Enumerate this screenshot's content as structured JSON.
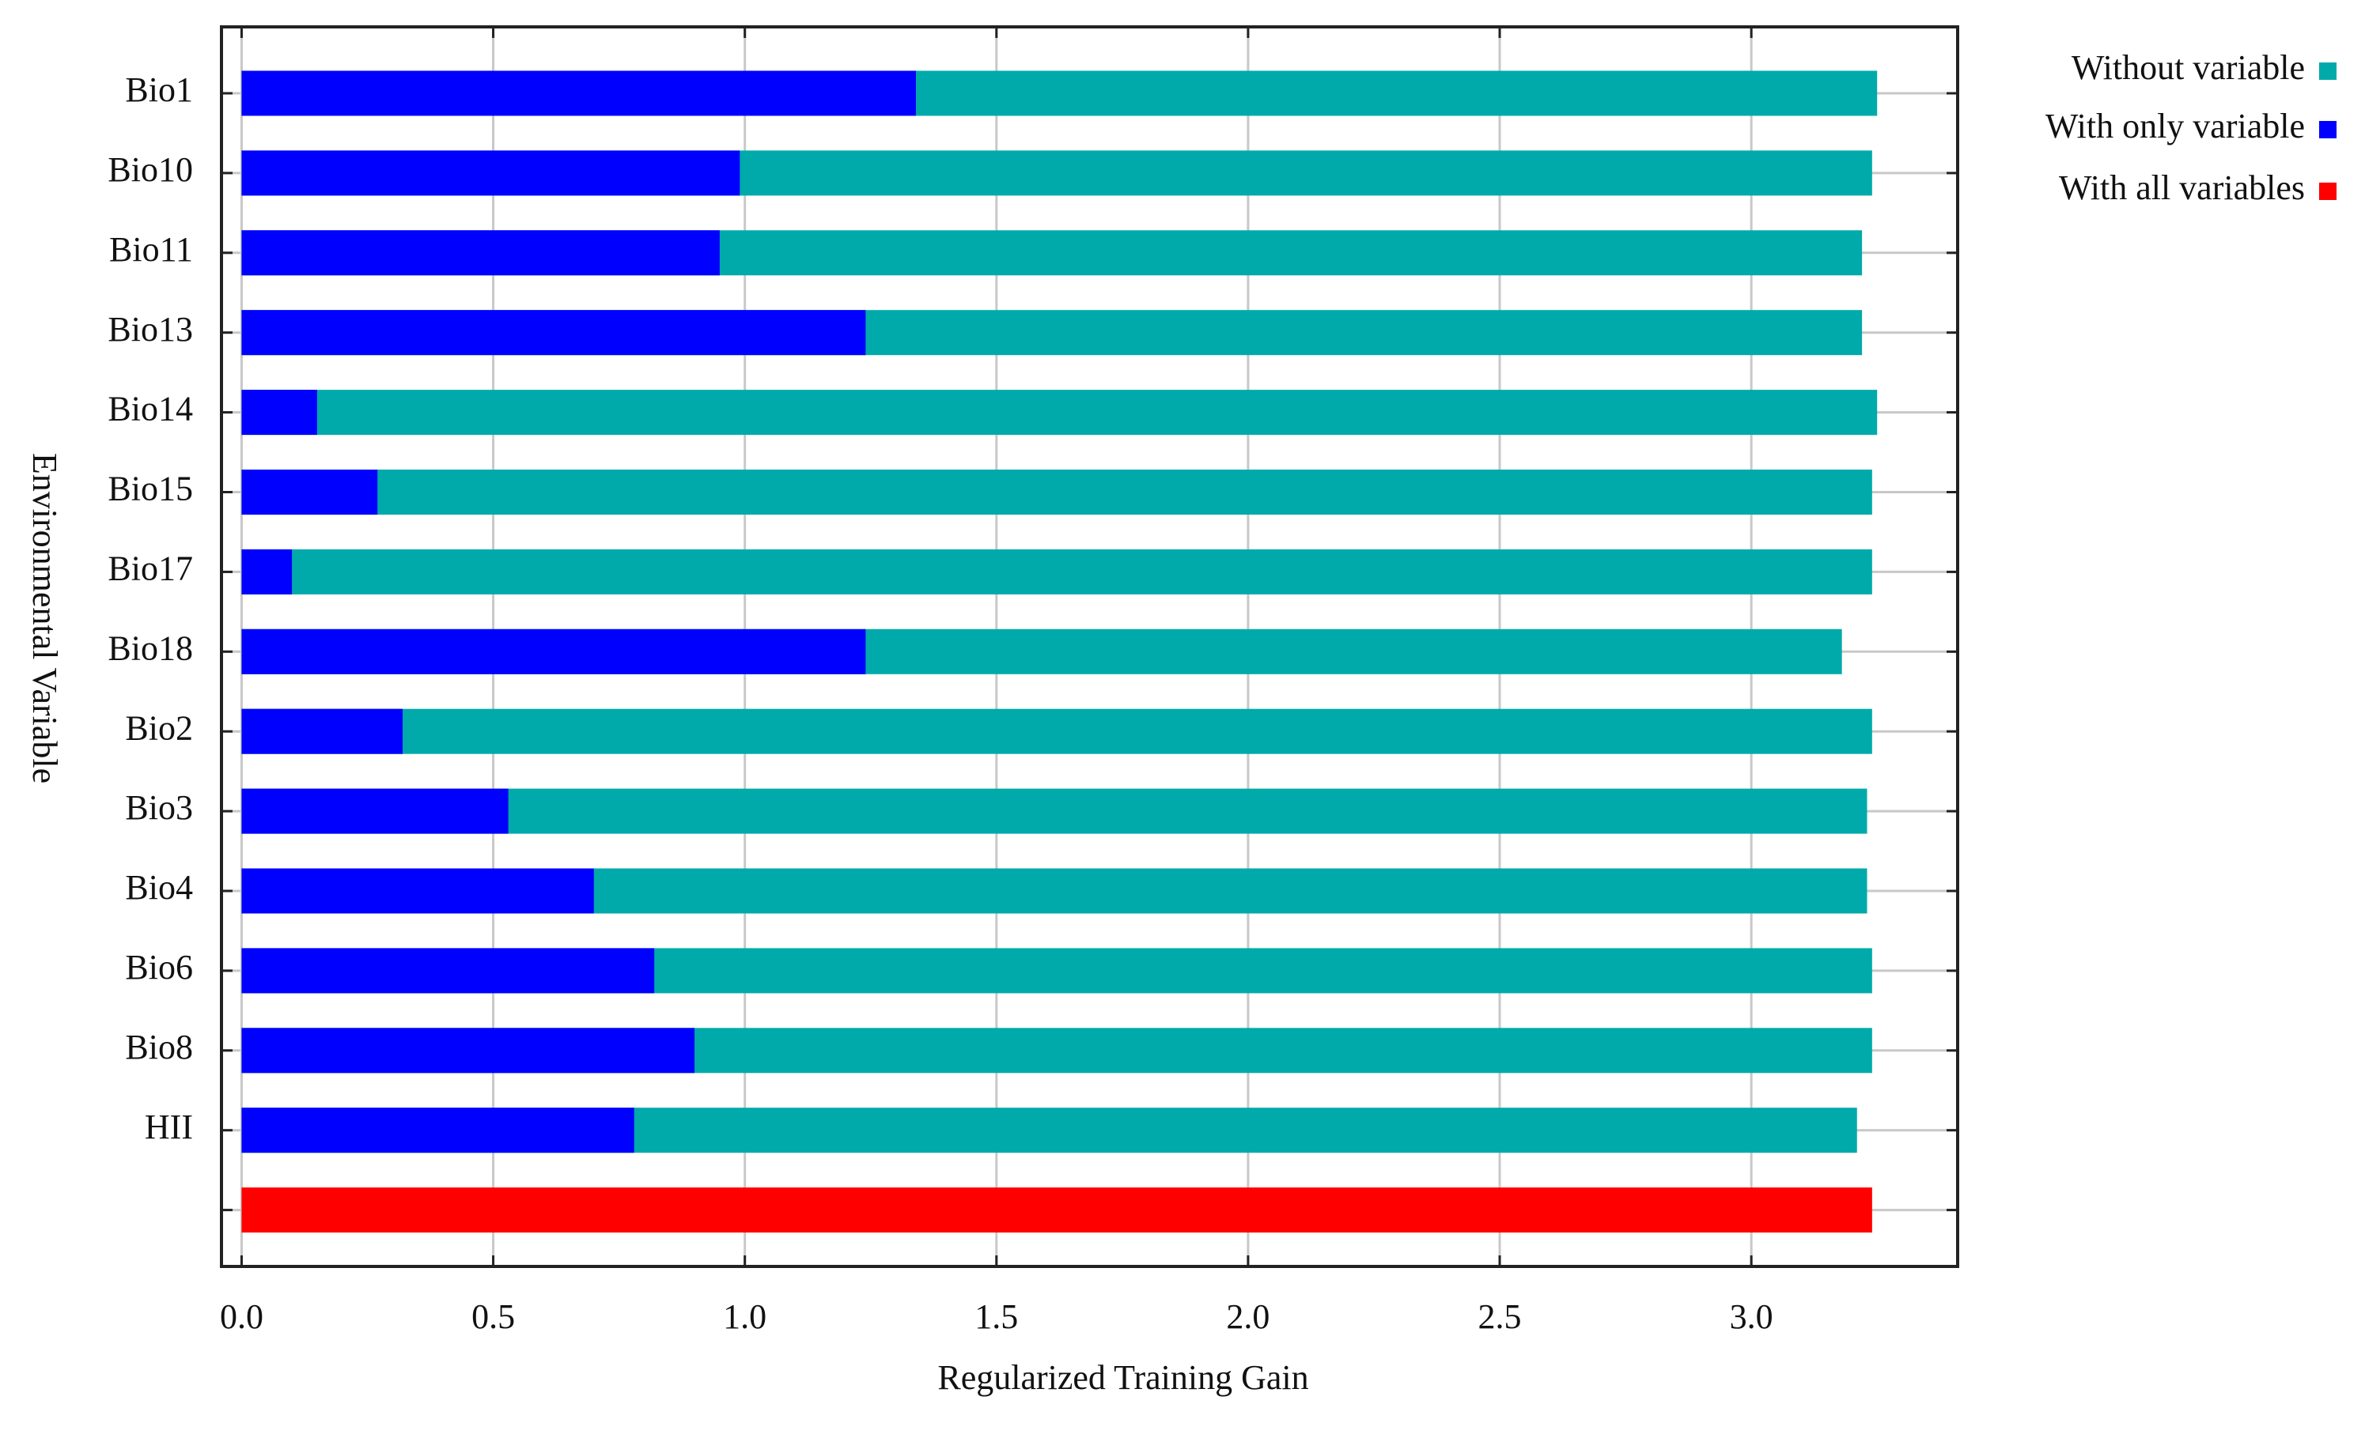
{
  "chart_data": {
    "type": "bar",
    "orientation": "horizontal",
    "xlabel": "Regularized Training Gain",
    "ylabel": "Environmental Variable",
    "categories": [
      "Bio1",
      "Bio10",
      "Bio11",
      "Bio13",
      "Bio14",
      "Bio15",
      "Bio17",
      "Bio18",
      "Bio2",
      "Bio3",
      "Bio4",
      "Bio6",
      "Bio8",
      "HII",
      null
    ],
    "series": [
      {
        "name": "Without variable",
        "color": "#00aaaa",
        "values": [
          3.25,
          3.24,
          3.22,
          3.22,
          3.25,
          3.24,
          3.24,
          3.18,
          3.24,
          3.23,
          3.23,
          3.24,
          3.24,
          3.21,
          null
        ]
      },
      {
        "name": "With only variable",
        "color": "#0000ff",
        "values": [
          1.34,
          0.99,
          0.95,
          1.24,
          0.15,
          0.27,
          0.1,
          1.24,
          0.32,
          0.53,
          0.7,
          0.82,
          0.9,
          0.78,
          null
        ]
      },
      {
        "name": "With all variables",
        "color": "#ff0000",
        "values": [
          null,
          null,
          null,
          null,
          null,
          null,
          null,
          null,
          null,
          null,
          null,
          null,
          null,
          null,
          3.24
        ]
      }
    ],
    "xlim": [
      -0.04,
      3.41
    ],
    "xticks": [
      {
        "value": 0,
        "label": "0.0"
      },
      0.5,
      {
        "value": 1,
        "label": "1.0"
      },
      1.5,
      {
        "value": 2,
        "label": "2.0"
      },
      2.5,
      {
        "value": 3,
        "label": "3.0"
      }
    ],
    "grid": true,
    "legend": "upper right"
  }
}
